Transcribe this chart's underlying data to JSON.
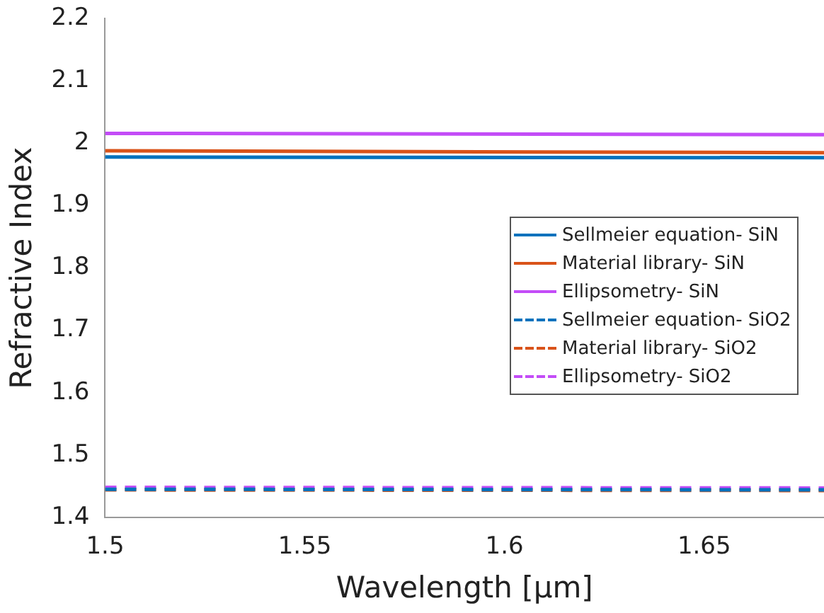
{
  "chart_data": {
    "type": "line",
    "xlabel": "Wavelength [µm]",
    "ylabel": "Refractive Index",
    "x": [
      1.5,
      1.68
    ],
    "series": [
      {
        "name": "Sellmeier equation- SiN",
        "color": "#0072bd",
        "values": [
          1.978,
          1.977
        ],
        "line_style": "solid"
      },
      {
        "name": "Material library- SiN",
        "color": "#d95319",
        "values": [
          1.988,
          1.985
        ],
        "line_style": "solid"
      },
      {
        "name": "Ellipsometry- SiN",
        "color": "#c34cf7",
        "values": [
          2.016,
          2.014
        ],
        "line_style": "solid"
      },
      {
        "name": "Sellmeier equation- SiO2",
        "color": "#0072bd",
        "values": [
          1.445,
          1.444
        ],
        "line_style": "dashed"
      },
      {
        "name": "Material library- SiO2",
        "color": "#d95319",
        "values": [
          1.444,
          1.443
        ],
        "line_style": "dashed"
      },
      {
        "name": "Ellipsometry- SiO2",
        "color": "#c34cf7",
        "values": [
          1.448,
          1.447
        ],
        "line_style": "dashed"
      }
    ],
    "xlim": [
      1.5,
      1.68
    ],
    "xticks": [
      1.5,
      1.55,
      1.6,
      1.65
    ],
    "ylim": [
      1.4,
      2.2
    ],
    "yticks": [
      1.4,
      1.5,
      1.6,
      1.7,
      1.8,
      1.9,
      2,
      2.1,
      2.2
    ],
    "grid": false,
    "legend": "right",
    "marker": "none"
  }
}
